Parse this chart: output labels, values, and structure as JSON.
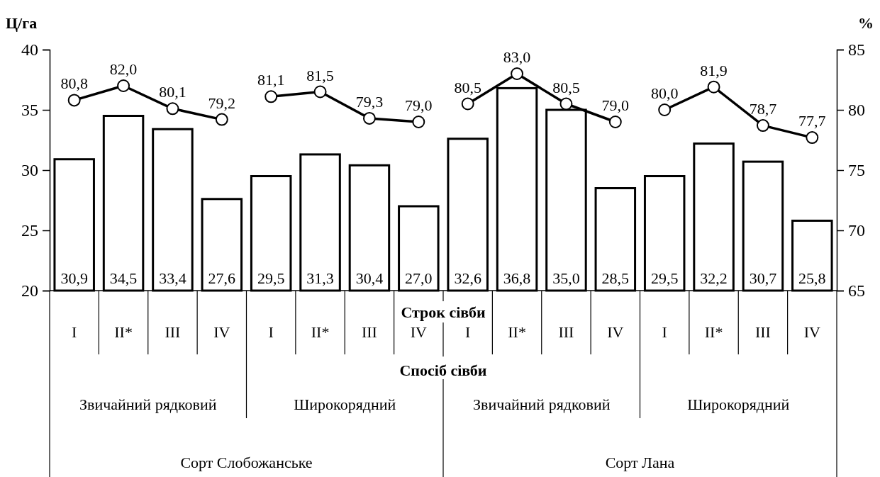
{
  "chart_data": {
    "type": "bar",
    "ylabel": "Ц/га",
    "y2label": "%",
    "xlabel": "Строк сівби",
    "categories": [
      "I",
      "II*",
      "III",
      "IV",
      "I",
      "II*",
      "III",
      "IV",
      "I",
      "II*",
      "III",
      "IV",
      "I",
      "II*",
      "III",
      "IV"
    ],
    "ylim": [
      20,
      40
    ],
    "yticks": [
      20,
      25,
      30,
      35,
      40
    ],
    "y2lim": [
      65,
      85
    ],
    "y2ticks": [
      65,
      70,
      75,
      80,
      85
    ],
    "grid": false,
    "marker": "circle",
    "series": [
      {
        "color": "#ffffff",
        "values": [
          30.9,
          34.5,
          33.4,
          27.6,
          29.5,
          31.3,
          30.4,
          27.0,
          32.6,
          36.8,
          35.0,
          28.5,
          29.5,
          32.2,
          30.7,
          25.8
        ],
        "value_labels": [
          "30,9",
          "34,5",
          "33,4",
          "27,6",
          "29,5",
          "31,3",
          "30,4",
          "27,0",
          "32,6",
          "36,8",
          "35,0",
          "28,5",
          "29,5",
          "32,2",
          "30,7",
          "25,8"
        ]
      },
      {
        "type": "line",
        "axis": "y2",
        "color": "#000000",
        "values": [
          80.8,
          82.0,
          80.1,
          79.2,
          null,
          null,
          null,
          null,
          null,
          null,
          null,
          null,
          null,
          null,
          null,
          null
        ],
        "value_labels": [
          "80,8",
          "82,0",
          "80,1",
          "79,2",
          null,
          null,
          null,
          null,
          null,
          null,
          null,
          null,
          null,
          null,
          null,
          null
        ]
      },
      {
        "type": "line",
        "axis": "y2",
        "color": "#000000",
        "values": [
          null,
          null,
          null,
          null,
          81.1,
          81.5,
          79.3,
          79.0,
          null,
          null,
          null,
          null,
          null,
          null,
          null,
          null
        ],
        "value_labels": [
          null,
          null,
          null,
          null,
          "81,1",
          "81,5",
          "79,3",
          "79,0",
          null,
          null,
          null,
          null,
          null,
          null,
          null,
          null
        ]
      },
      {
        "type": "line",
        "axis": "y2",
        "color": "#000000",
        "values": [
          null,
          null,
          null,
          null,
          null,
          null,
          null,
          null,
          80.5,
          83.0,
          80.5,
          79.0,
          null,
          null,
          null,
          null
        ],
        "value_labels": [
          null,
          null,
          null,
          null,
          null,
          null,
          null,
          null,
          "80,5",
          "83,0",
          "80,5",
          "79,0",
          null,
          null,
          null,
          null
        ]
      },
      {
        "type": "line",
        "axis": "y2",
        "color": "#000000",
        "values": [
          null,
          null,
          null,
          null,
          null,
          null,
          null,
          null,
          null,
          null,
          null,
          null,
          80.0,
          81.9,
          78.7,
          77.7
        ],
        "value_labels": [
          null,
          null,
          null,
          null,
          null,
          null,
          null,
          null,
          null,
          null,
          null,
          null,
          "80,0",
          "81,9",
          "78,7",
          "77,7"
        ]
      }
    ],
    "annotations": [
      "Спосіб сівби",
      "Звичайний рядковий",
      "Широкорядний",
      "Звичайний рядковий",
      "Широкорядний",
      "Сорт Слобожанське",
      "Сорт Лана"
    ]
  }
}
